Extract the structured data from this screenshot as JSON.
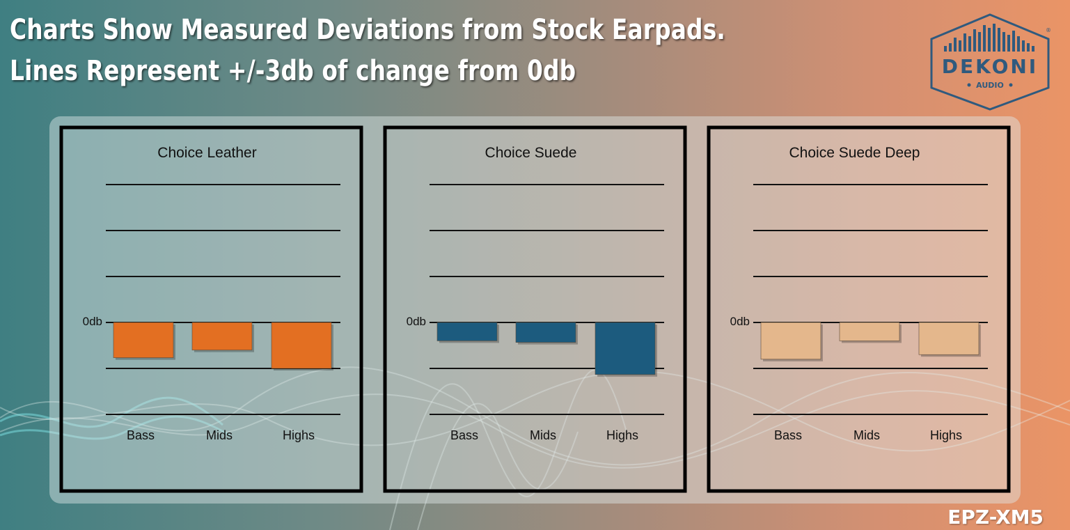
{
  "header": {
    "title_line1": "Charts Show Measured Deviations from Stock Earpads.",
    "title_line2": "Lines Represent +/-3db of change from 0db"
  },
  "brand": {
    "name": "DEKONI",
    "sub": "AUDIO",
    "mark": "®",
    "color": "#2f5a7e"
  },
  "model": "EPZ-XM5",
  "chart_data": [
    {
      "type": "bar",
      "title": "Choice Leather",
      "categories": [
        "Bass",
        "Mids",
        "Highs"
      ],
      "values": [
        -2.3,
        -1.8,
        -3.0
      ],
      "zero_label": "0db",
      "gridline_step": 3,
      "ylim": [
        -6,
        9
      ],
      "color": "#e36f22"
    },
    {
      "type": "bar",
      "title": "Choice Suede",
      "categories": [
        "Bass",
        "Mids",
        "Highs"
      ],
      "values": [
        -1.2,
        -1.3,
        -3.4
      ],
      "zero_label": "0db",
      "gridline_step": 3,
      "ylim": [
        -6,
        9
      ],
      "color": "#1c5b7e"
    },
    {
      "type": "bar",
      "title": "Choice Suede Deep",
      "categories": [
        "Bass",
        "Mids",
        "Highs"
      ],
      "values": [
        -2.4,
        -1.2,
        -2.1
      ],
      "zero_label": "0db",
      "gridline_step": 3,
      "ylim": [
        -6,
        9
      ],
      "color": "#e4b78c"
    }
  ]
}
